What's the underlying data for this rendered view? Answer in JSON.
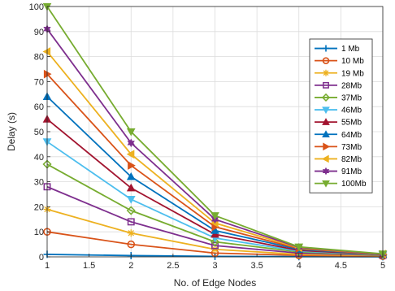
{
  "chart_data": {
    "type": "line",
    "xlabel": "No. of Edge Nodes",
    "ylabel": "Delay (s)",
    "xlim": [
      1,
      5
    ],
    "ylim": [
      0,
      100
    ],
    "xticks": [
      "1",
      "1.5",
      "2",
      "2.5",
      "3",
      "3.5",
      "4",
      "4.5",
      "5"
    ],
    "yticks": [
      "0",
      "10",
      "20",
      "30",
      "40",
      "50",
      "60",
      "70",
      "80",
      "90",
      "100"
    ],
    "grid": true,
    "legend_position": "right",
    "x": [
      1,
      2,
      3,
      4,
      5
    ],
    "series": [
      {
        "name": "1 Mb",
        "color": "#0072BD",
        "marker": "plus",
        "values": [
          1,
          0.5,
          0.2,
          0.1,
          0.05
        ]
      },
      {
        "name": "10 Mb",
        "color": "#D95319",
        "marker": "circle",
        "values": [
          10,
          5,
          1.5,
          0.6,
          0.3
        ]
      },
      {
        "name": "19 Mb",
        "color": "#EDB120",
        "marker": "asterisk",
        "values": [
          19,
          9.5,
          3,
          1,
          0.5
        ]
      },
      {
        "name": "28Mb",
        "color": "#7E2F8E",
        "marker": "square",
        "values": [
          28,
          14,
          4.5,
          1.5,
          0.6
        ]
      },
      {
        "name": "37Mb",
        "color": "#77AC30",
        "marker": "diamond",
        "values": [
          37,
          18.5,
          6,
          2,
          0.7
        ]
      },
      {
        "name": "46Mb",
        "color": "#4DBEEE",
        "marker": "triangle-down",
        "values": [
          46,
          23,
          7.5,
          2.3,
          0.8
        ]
      },
      {
        "name": "55Mb",
        "color": "#A2142F",
        "marker": "triangle-up",
        "values": [
          55,
          27.5,
          9,
          2.6,
          0.9
        ]
      },
      {
        "name": "64Mb",
        "color": "#0072BD",
        "marker": "triangle-up",
        "values": [
          64,
          32,
          10.5,
          3,
          1
        ]
      },
      {
        "name": "73Mb",
        "color": "#D95319",
        "marker": "triangle-right",
        "values": [
          73,
          36.5,
          12,
          3.3,
          1
        ]
      },
      {
        "name": "82Mb",
        "color": "#EDB120",
        "marker": "triangle-left",
        "values": [
          82,
          41,
          13.5,
          3.6,
          1.1
        ]
      },
      {
        "name": "91Mb",
        "color": "#7E2F8E",
        "marker": "hexagram",
        "values": [
          91,
          45.5,
          15,
          3.8,
          1.1
        ]
      },
      {
        "name": "100Mb",
        "color": "#77AC30",
        "marker": "triangle-down",
        "values": [
          100,
          50,
          16.5,
          4,
          1.2
        ]
      }
    ]
  }
}
